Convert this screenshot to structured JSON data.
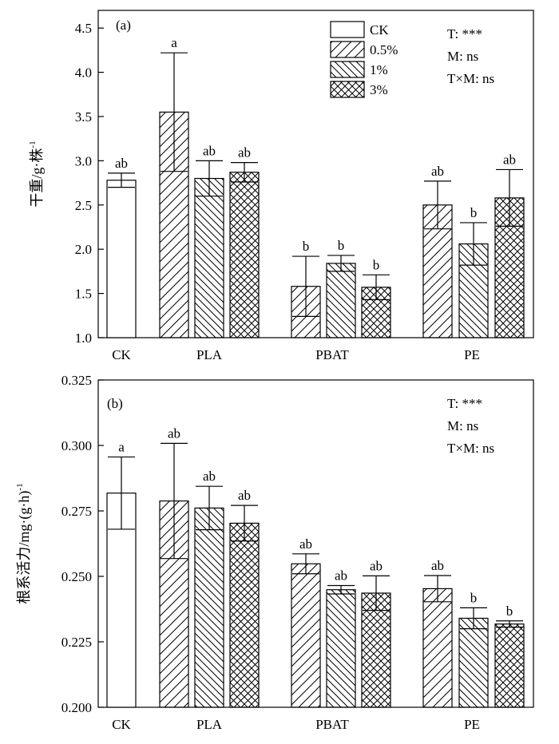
{
  "legend": {
    "entries": [
      {
        "label": "CK",
        "pattern": "none"
      },
      {
        "label": "0.5%",
        "pattern": "fwd"
      },
      {
        "label": "1%",
        "pattern": "back"
      },
      {
        "label": "3%",
        "pattern": "cross"
      }
    ]
  },
  "chart_data": [
    {
      "type": "bar",
      "panel_label": "(a)",
      "ylabel": "干重/g·株",
      "ylabel_sup": "-1",
      "ylim": [
        1.0,
        4.7
      ],
      "yticks": [
        "1.0",
        "1.5",
        "2.0",
        "2.5",
        "3.0",
        "3.5",
        "4.0",
        "4.5"
      ],
      "ytick_values": [
        1.0,
        1.5,
        2.0,
        2.5,
        3.0,
        3.5,
        4.0,
        4.5
      ],
      "categories": [
        "CK",
        "PLA",
        "PBAT",
        "PE"
      ],
      "stats": [
        "T: ***",
        "M: ns",
        "T×M: ns"
      ],
      "bars": [
        {
          "category": "CK",
          "series": "CK",
          "value": 2.78,
          "error": 0.08,
          "letter": "ab"
        },
        {
          "category": "PLA",
          "series": "0.5%",
          "value": 3.55,
          "error": 0.67,
          "letter": "a"
        },
        {
          "category": "PLA",
          "series": "1%",
          "value": 2.8,
          "error": 0.2,
          "letter": "ab"
        },
        {
          "category": "PLA",
          "series": "3%",
          "value": 2.87,
          "error": 0.11,
          "letter": "ab"
        },
        {
          "category": "PBAT",
          "series": "0.5%",
          "value": 1.58,
          "error": 0.34,
          "letter": "b"
        },
        {
          "category": "PBAT",
          "series": "1%",
          "value": 1.84,
          "error": 0.09,
          "letter": "b"
        },
        {
          "category": "PBAT",
          "series": "3%",
          "value": 1.57,
          "error": 0.14,
          "letter": "b"
        },
        {
          "category": "PE",
          "series": "0.5%",
          "value": 2.5,
          "error": 0.27,
          "letter": "ab"
        },
        {
          "category": "PE",
          "series": "1%",
          "value": 2.06,
          "error": 0.24,
          "letter": "b"
        },
        {
          "category": "PE",
          "series": "3%",
          "value": 2.58,
          "error": 0.32,
          "letter": "ab"
        }
      ]
    },
    {
      "type": "bar",
      "panel_label": "(b)",
      "ylabel": "根系活力/mg·(g·h)",
      "ylabel_sup": "-1",
      "ylim": [
        0.2,
        0.325
      ],
      "yticks": [
        "0.200",
        "0.225",
        "0.250",
        "0.275",
        "0.300",
        "0.325"
      ],
      "ytick_values": [
        0.2,
        0.225,
        0.25,
        0.275,
        0.3,
        0.325
      ],
      "categories": [
        "CK",
        "PLA",
        "PBAT",
        "PE"
      ],
      "stats": [
        "T: ***",
        "M: ns",
        "T×M: ns"
      ],
      "bars": [
        {
          "category": "CK",
          "series": "CK",
          "value": 0.2818,
          "error": 0.0138,
          "letter": "a"
        },
        {
          "category": "PLA",
          "series": "0.5%",
          "value": 0.2788,
          "error": 0.022,
          "letter": "ab"
        },
        {
          "category": "PLA",
          "series": "1%",
          "value": 0.2761,
          "error": 0.0083,
          "letter": "ab"
        },
        {
          "category": "PLA",
          "series": "3%",
          "value": 0.2703,
          "error": 0.0068,
          "letter": "ab"
        },
        {
          "category": "PBAT",
          "series": "0.5%",
          "value": 0.2548,
          "error": 0.0038,
          "letter": "ab"
        },
        {
          "category": "PBAT",
          "series": "1%",
          "value": 0.2449,
          "error": 0.0016,
          "letter": "ab"
        },
        {
          "category": "PBAT",
          "series": "3%",
          "value": 0.2436,
          "error": 0.0066,
          "letter": "ab"
        },
        {
          "category": "PE",
          "series": "0.5%",
          "value": 0.2453,
          "error": 0.005,
          "letter": "ab"
        },
        {
          "category": "PE",
          "series": "1%",
          "value": 0.234,
          "error": 0.004,
          "letter": "b"
        },
        {
          "category": "PE",
          "series": "3%",
          "value": 0.2318,
          "error": 0.0012,
          "letter": "b"
        }
      ]
    }
  ]
}
